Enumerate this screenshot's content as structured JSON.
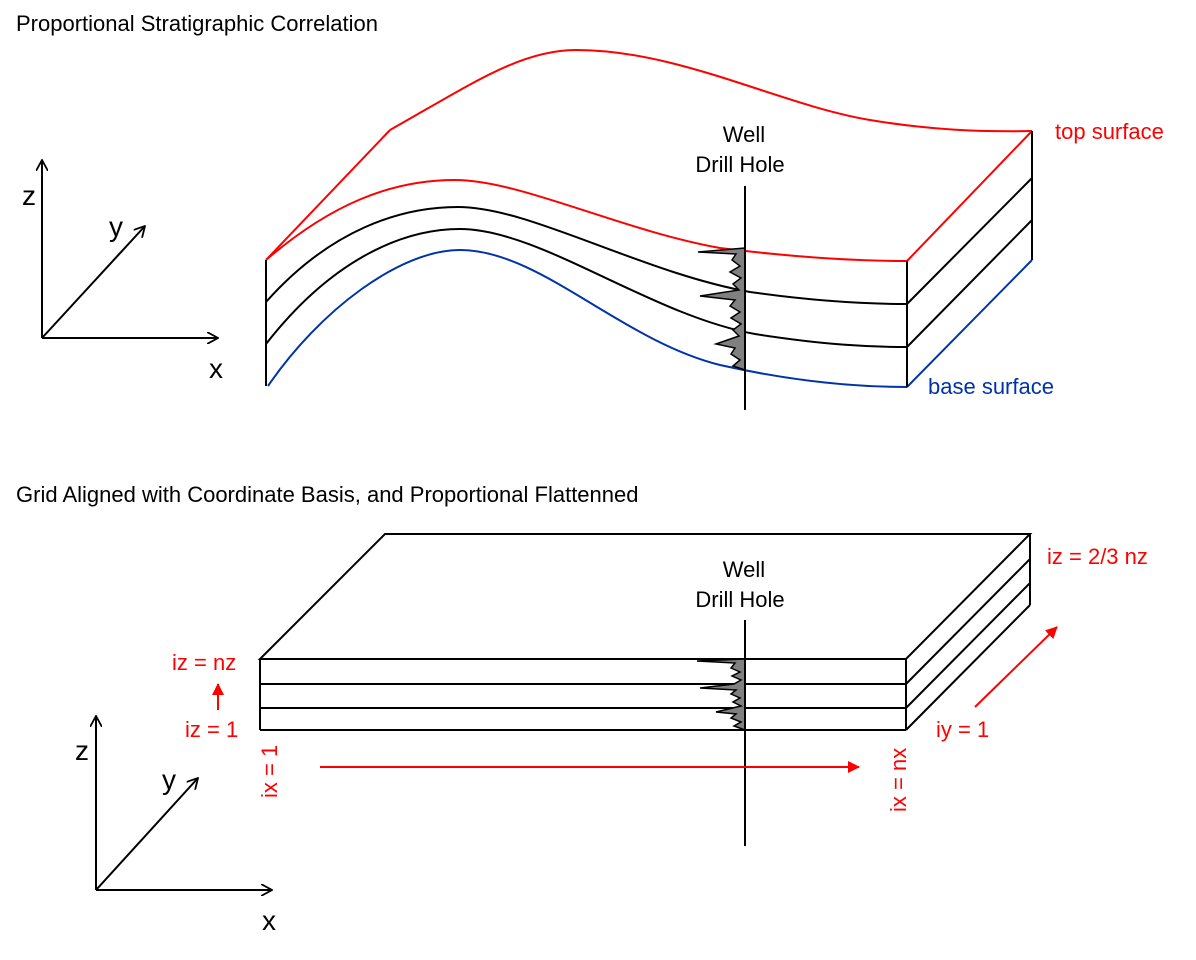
{
  "top_panel": {
    "title": "Proportional Stratigraphic Correlation",
    "well_label_line1": "Well",
    "well_label_line2": "Drill Hole",
    "top_surface_label": "top surface",
    "base_surface_label": "base surface",
    "axis_x": "x",
    "axis_y": "y",
    "axis_z": "z"
  },
  "bottom_panel": {
    "title": "Grid Aligned with Coordinate Basis, and Proportional Flattenned",
    "well_label_line1": "Well",
    "well_label_line2": "Drill Hole",
    "iz_top_label": "iz = nz",
    "iz_bottom_label": "iz = 1",
    "ix_start_label": "ix = 1",
    "ix_end_label": "ix = nx",
    "iy_label": "iy = 1",
    "iz_mid_label": "iz = 2/3 nz",
    "axis_x": "x",
    "axis_y": "y",
    "axis_z": "z"
  },
  "colors": {
    "top_surface": "#ff0000",
    "base_surface": "#0033aa",
    "index_labels": "#ff0000",
    "log_fill": "#808080"
  }
}
